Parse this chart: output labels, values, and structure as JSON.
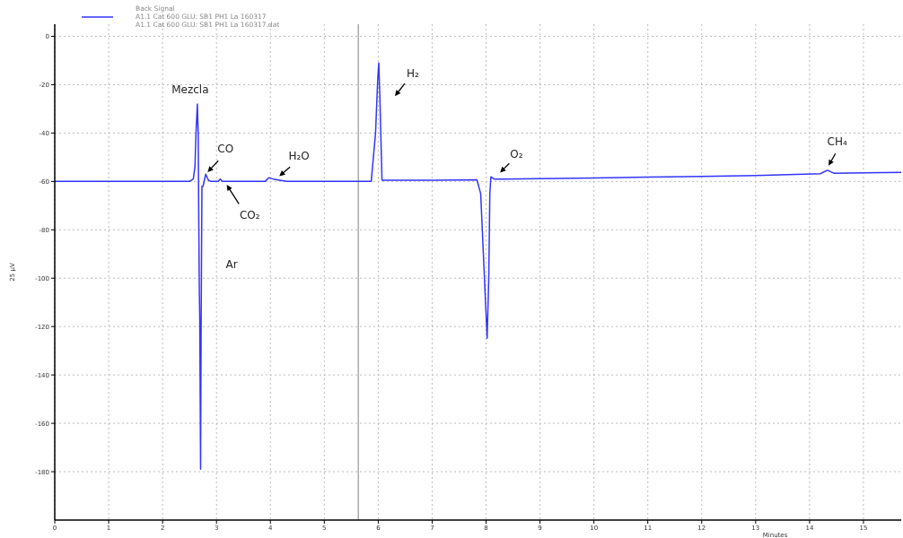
{
  "chart_data": {
    "type": "line",
    "xlabel": "Minutes",
    "ylabel": "25 µV",
    "legend_title": "Back Signal",
    "legend": "top left",
    "grid": true,
    "line_style": "solid",
    "marker": "none",
    "xlim": [
      0,
      15.7
    ],
    "xticks": [
      0,
      1,
      2,
      3,
      4,
      5,
      6,
      7,
      8,
      9,
      10,
      11,
      12,
      13,
      14,
      15
    ],
    "ylim": [
      -200,
      5
    ],
    "yticks": [
      0,
      -20,
      -40,
      -60,
      -80,
      -100,
      -120,
      -140,
      -160,
      -180
    ],
    "ref_lines": [
      {
        "axis": "x",
        "value": 5.63,
        "color": "#808080"
      }
    ],
    "series": [
      {
        "name": "A1.1 Cat 600 GLU: SB1 PH1 La 160317",
        "color": "#3333ff",
        "x": [
          0,
          1,
          2,
          2.5,
          2.57,
          2.6,
          2.62,
          2.645,
          2.66,
          2.68,
          2.69,
          2.705,
          2.715,
          2.73,
          2.75,
          2.8,
          2.85,
          2.9,
          3.03,
          3.07,
          3.11,
          3.5,
          3.9,
          3.97,
          4.05,
          4.3,
          5,
          5.6,
          5.87,
          5.95,
          5.99,
          6.01,
          6.03,
          6.07,
          6.2,
          7,
          7.83,
          7.9,
          7.95,
          8.0,
          8.02,
          8.05,
          8.07,
          8.09,
          8.15,
          8.3,
          9,
          10,
          11,
          12,
          13,
          14.2,
          14.33,
          14.45,
          15,
          15.7
        ],
        "values": [
          -60,
          -60,
          -60,
          -60,
          -59,
          -54,
          -40,
          -28,
          -40,
          -102,
          -117,
          -179,
          -120,
          -62,
          -62,
          -57,
          -59.5,
          -60,
          -60,
          -59,
          -60,
          -60,
          -60,
          -58.5,
          -59,
          -60,
          -60,
          -60,
          -60,
          -40,
          -18,
          -11,
          -25,
          -59.5,
          -59.5,
          -59.5,
          -59.3,
          -65,
          -90,
          -115,
          -124.8,
          -100,
          -65,
          -58.1,
          -59,
          -59,
          -58.9,
          -58.6,
          -58.2,
          -57.9,
          -57.6,
          -56.8,
          -55.4,
          -56.6,
          -56.4,
          -56.3
        ]
      }
    ],
    "annotations": [
      {
        "text": "Mezcla",
        "x": 2.645,
        "y": -28
      },
      {
        "text": "CO",
        "x": 2.8,
        "y": -57
      },
      {
        "text": "CO₂",
        "x": 3.15,
        "y": -60
      },
      {
        "text": "H₂O",
        "x": 4.13,
        "y": -58.5
      },
      {
        "text": "H₂",
        "x": 6.01,
        "y": -11
      },
      {
        "text": "O₂",
        "x": 8.23,
        "y": -57
      },
      {
        "text": "CH₄",
        "x": 14.33,
        "y": -54.4
      },
      "Ar",
      "A1.1 Cat 600 GLU: SB1 PH1 La 160317.dat"
    ]
  }
}
